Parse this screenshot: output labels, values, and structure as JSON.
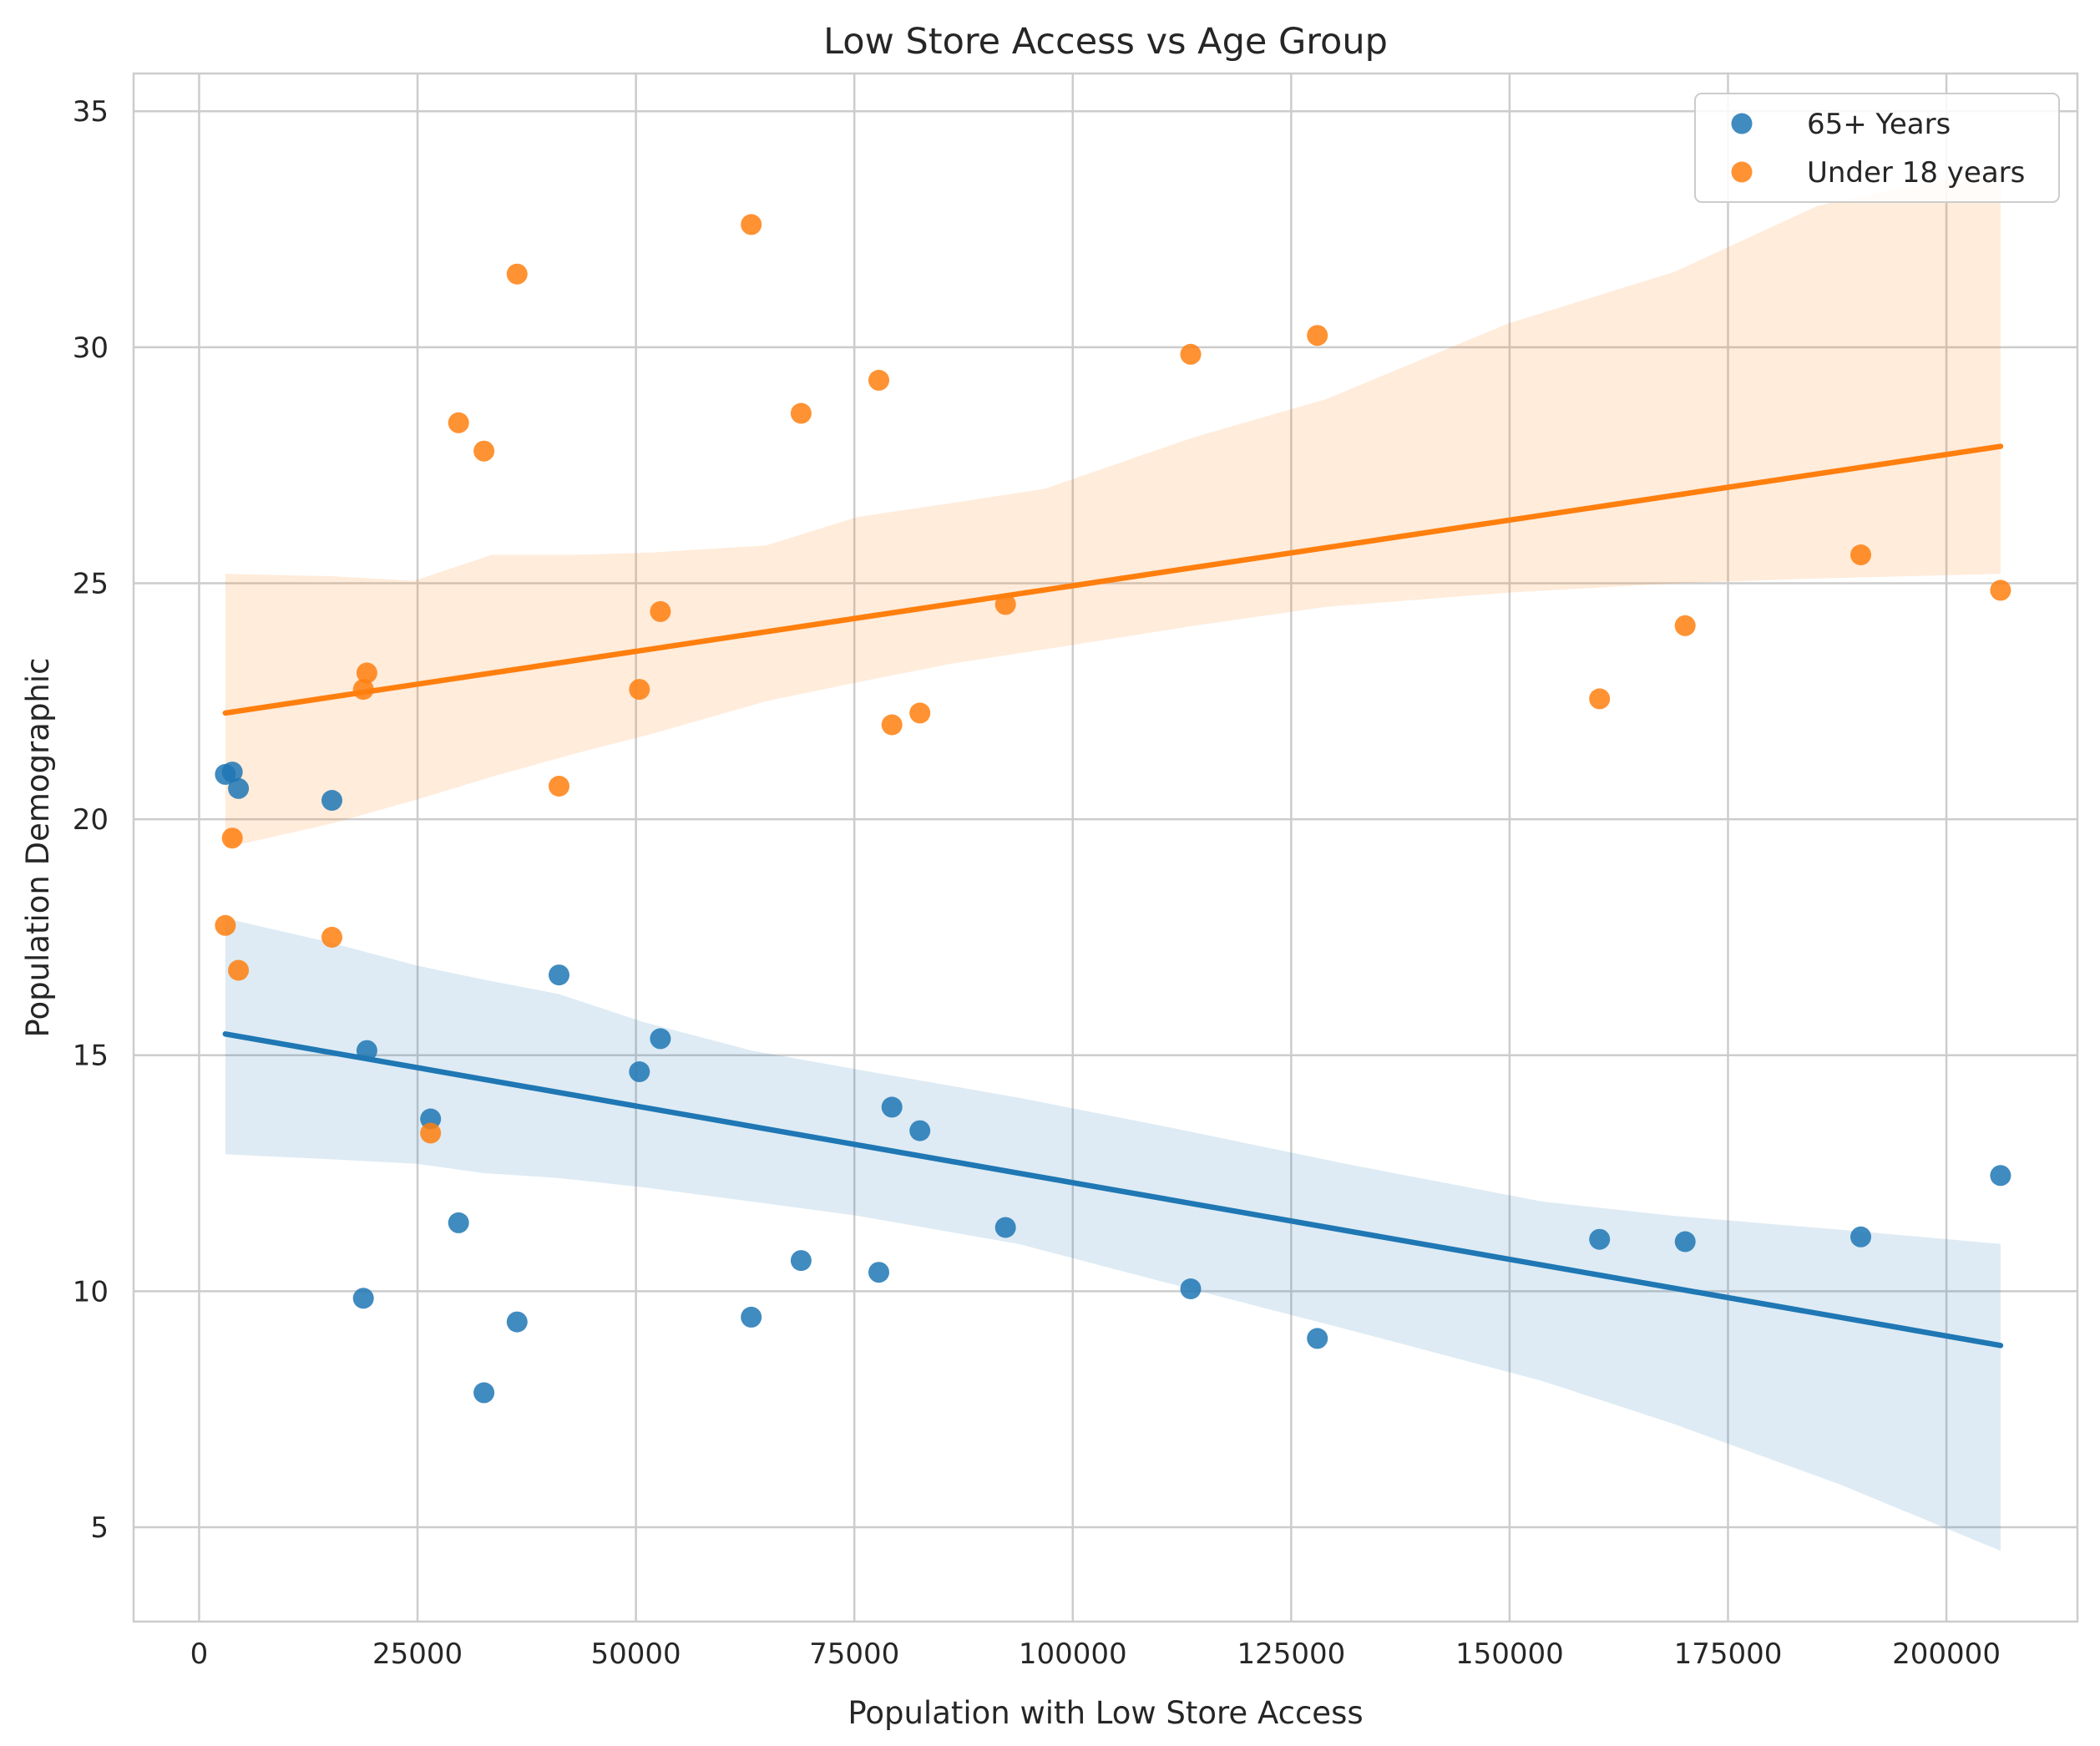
{
  "chart_data": {
    "type": "scatter",
    "title": "Low Store Access vs Age Group",
    "xlabel": "Population with Low Store Access",
    "ylabel": "Population Demographic",
    "xlim": [
      -7500,
      215000
    ],
    "ylim": [
      3.0,
      35.8
    ],
    "xticks": [
      0,
      25000,
      50000,
      75000,
      100000,
      125000,
      150000,
      175000,
      200000
    ],
    "yticks": [
      5,
      10,
      15,
      20,
      25,
      30,
      35
    ],
    "grid": true,
    "legend_position": "top-right",
    "series": [
      {
        "name": "65+ Years",
        "color": "#1f77b4",
        "points": [
          [
            3000,
            20.95
          ],
          [
            3800,
            21.0
          ],
          [
            4500,
            20.65
          ],
          [
            15200,
            20.4
          ],
          [
            18800,
            9.85
          ],
          [
            19200,
            15.1
          ],
          [
            26500,
            13.65
          ],
          [
            29700,
            11.45
          ],
          [
            32600,
            7.85
          ],
          [
            36400,
            9.35
          ],
          [
            41200,
            16.7
          ],
          [
            50400,
            14.65
          ],
          [
            52800,
            15.35
          ],
          [
            63200,
            9.45
          ],
          [
            68900,
            10.65
          ],
          [
            77800,
            10.4
          ],
          [
            79300,
            13.9
          ],
          [
            82500,
            13.4
          ],
          [
            92300,
            11.35
          ],
          [
            113500,
            10.05
          ],
          [
            128000,
            9.0
          ],
          [
            160300,
            11.1
          ],
          [
            170100,
            11.05
          ],
          [
            190200,
            11.15
          ],
          [
            206200,
            12.45
          ]
        ],
        "regression": {
          "x": [
            3000,
            206200
          ],
          "y": [
            15.45,
            8.85
          ]
        },
        "ci": {
          "x": [
            3000,
            14700,
            24900,
            32600,
            41100,
            50900,
            63200,
            75300,
            93800,
            110300,
            131200,
            153700,
            168600,
            187900,
            206200
          ],
          "upper": [
            17.9,
            17.4,
            16.9,
            16.6,
            16.3,
            15.7,
            15.1,
            14.7,
            14.1,
            13.5,
            12.7,
            11.9,
            11.6,
            11.3,
            11.0
          ],
          "lower": [
            12.9,
            12.8,
            12.7,
            12.5,
            12.4,
            12.2,
            11.9,
            11.6,
            11.0,
            10.2,
            9.2,
            8.1,
            7.2,
            5.9,
            4.5
          ]
        }
      },
      {
        "name": "Under 18 years",
        "color": "#ff7f0e",
        "points": [
          [
            3000,
            17.75
          ],
          [
            3800,
            19.6
          ],
          [
            4500,
            16.8
          ],
          [
            15200,
            17.5
          ],
          [
            18800,
            22.75
          ],
          [
            19200,
            23.1
          ],
          [
            26500,
            13.35
          ],
          [
            29700,
            28.4
          ],
          [
            32600,
            27.8
          ],
          [
            36400,
            31.55
          ],
          [
            41200,
            20.7
          ],
          [
            50400,
            22.75
          ],
          [
            52800,
            24.4
          ],
          [
            63200,
            32.6
          ],
          [
            68900,
            28.6
          ],
          [
            77800,
            29.3
          ],
          [
            79300,
            22.0
          ],
          [
            82500,
            22.25
          ],
          [
            92300,
            24.55
          ],
          [
            113500,
            29.85
          ],
          [
            128000,
            30.25
          ],
          [
            160300,
            22.55
          ],
          [
            170100,
            24.1
          ],
          [
            190200,
            25.6
          ],
          [
            206200,
            24.85
          ]
        ],
        "regression": {
          "x": [
            3000,
            206200
          ],
          "y": [
            22.25,
            27.9
          ]
        },
        "ci": {
          "x": [
            3000,
            15000,
            24600,
            33500,
            43200,
            51700,
            64900,
            75300,
            86200,
            96800,
            114000,
            129000,
            149800,
            168900,
            185300,
            206200
          ],
          "upper": [
            25.2,
            25.15,
            25.05,
            25.6,
            25.6,
            25.65,
            25.8,
            26.4,
            26.7,
            27.0,
            28.1,
            28.9,
            30.5,
            31.6,
            33.0,
            33.8
          ],
          "lower": [
            19.4,
            19.9,
            20.4,
            20.9,
            21.4,
            21.8,
            22.5,
            22.9,
            23.3,
            23.6,
            24.1,
            24.5,
            24.8,
            25.0,
            25.1,
            25.2
          ]
        }
      }
    ]
  }
}
